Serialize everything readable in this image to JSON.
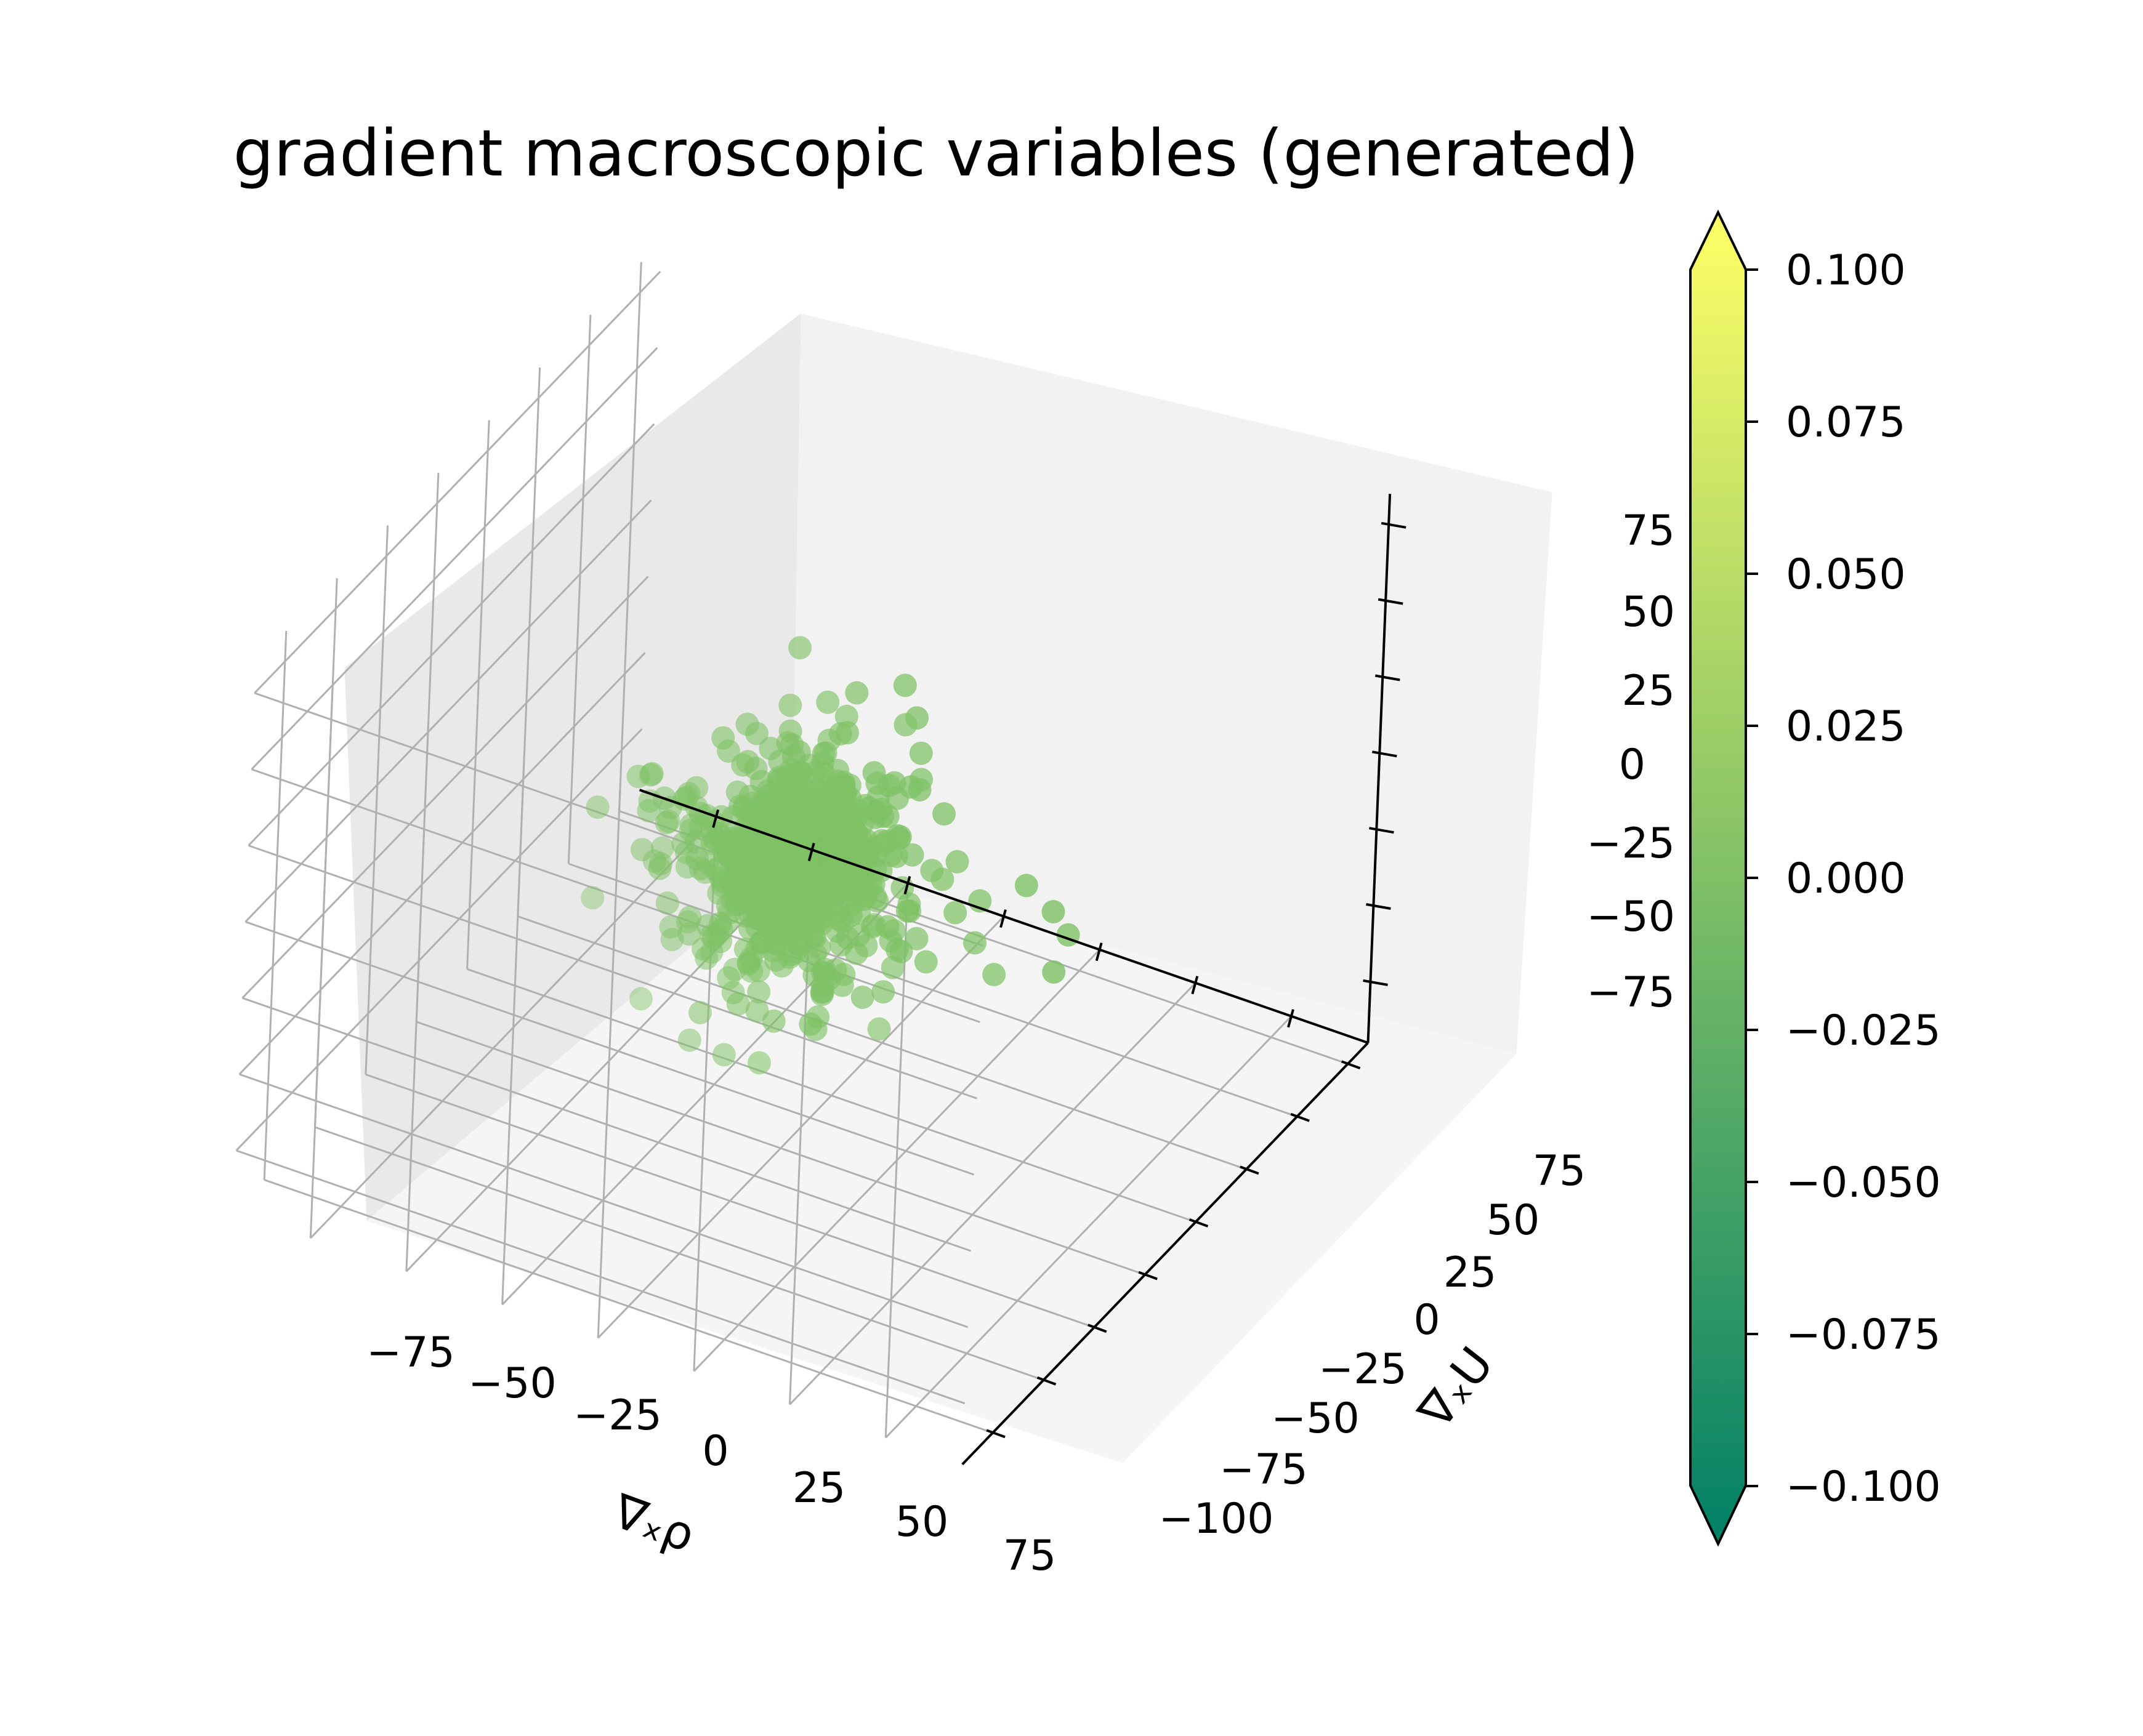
{
  "chart_data": {
    "type": "scatter",
    "projection": "3d",
    "title": "gradient macroscopic variables (generated)",
    "xlabel": "∇ₓρ",
    "ylabel": "∇ₓU",
    "zlabel": "",
    "xlim": [
      -95,
      95
    ],
    "ylim": [
      -110,
      90
    ],
    "zlim": [
      -95,
      85
    ],
    "grid": true,
    "x_ticks": [
      "−75",
      "−50",
      "−25",
      "0",
      "25",
      "50",
      "75"
    ],
    "y_ticks": [
      "−100",
      "−75",
      "−50",
      "−25",
      "0",
      "25",
      "50",
      "75"
    ],
    "z_ticks": [
      "−75",
      "−50",
      "−25",
      "0",
      "25",
      "50",
      "75"
    ],
    "marker_color": "#7fc266",
    "point_count": 1000,
    "distribution": "heavy-tailed, centered near (0, 0, 0)",
    "colorbar": {
      "colormap": "summer",
      "range": [
        -0.1,
        0.1
      ],
      "extend": "both",
      "ticks": [
        "0.100",
        "0.075",
        "0.050",
        "0.025",
        "0.000",
        "−0.025",
        "−0.050",
        "−0.075",
        "−0.100"
      ],
      "color_low": "#008066",
      "color_high": "#ffff66"
    }
  }
}
